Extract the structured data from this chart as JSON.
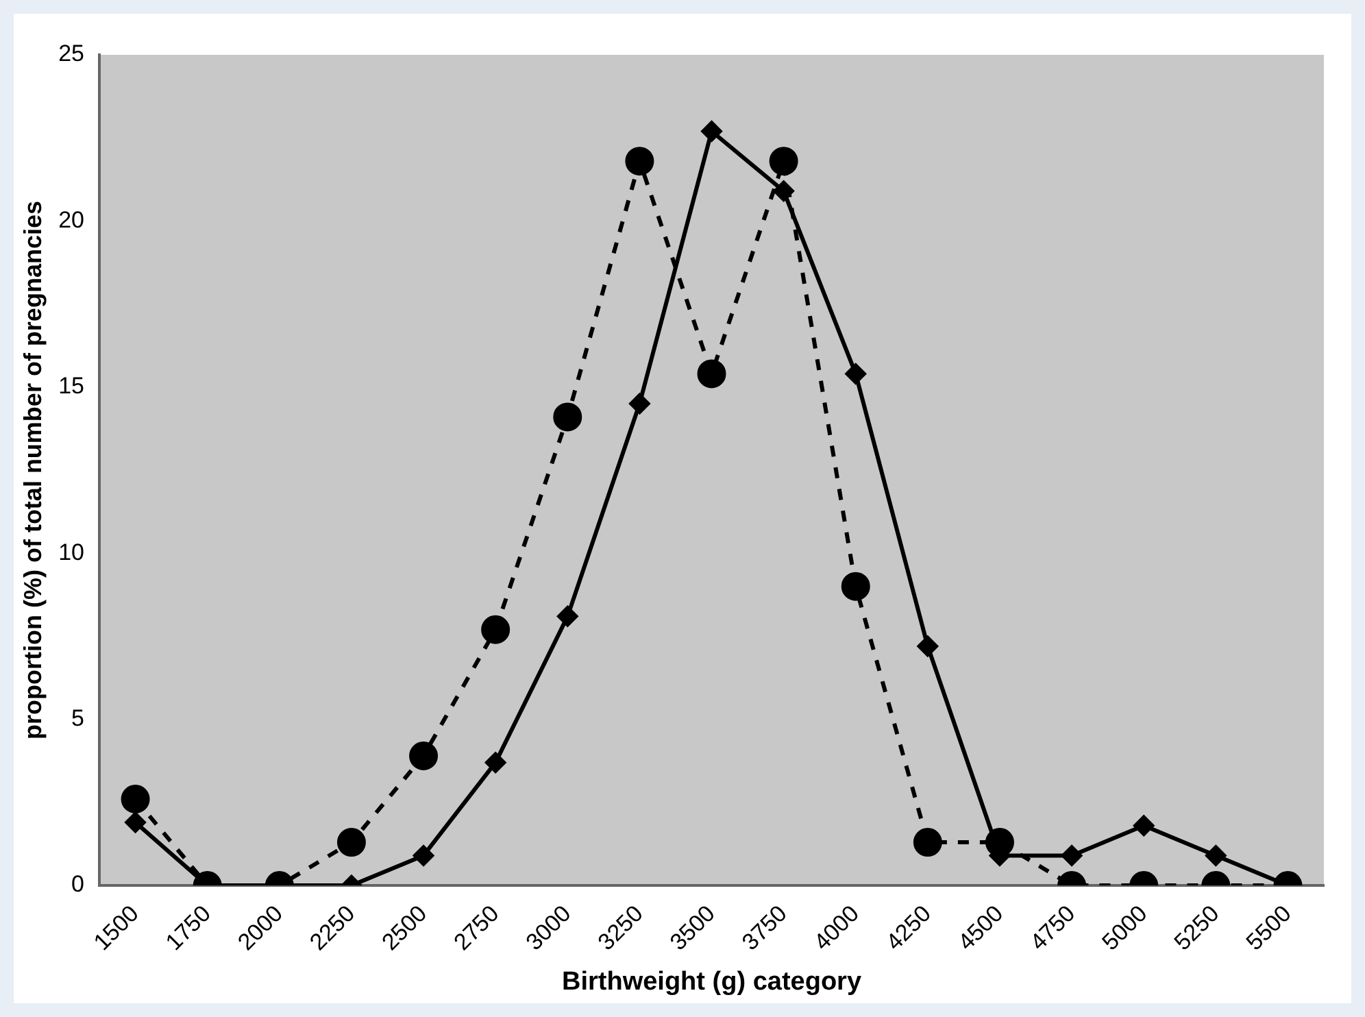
{
  "chart_data": {
    "type": "line",
    "xlabel": "Birthweight (g) category",
    "ylabel": "proportion (%) of total number of pregnancies",
    "categories": [
      "1500",
      "1750",
      "2000",
      "2250",
      "2500",
      "2750",
      "3000",
      "3250",
      "3500",
      "3750",
      "4000",
      "4250",
      "4500",
      "4750",
      "5000",
      "5250",
      "5500"
    ],
    "series": [
      {
        "color": "#000000",
        "marker": "diamond",
        "line_style": "solid",
        "values": [
          1.9,
          0,
          0,
          0,
          0.9,
          3.7,
          8.1,
          14.5,
          22.7,
          20.9,
          15.4,
          7.2,
          0.9,
          0.9,
          1.8,
          0.9,
          0
        ]
      },
      {
        "color": "#000000",
        "marker": "circle",
        "line_style": "dashed",
        "values": [
          2.6,
          0,
          0,
          1.3,
          3.9,
          7.7,
          14.1,
          21.8,
          15.4,
          21.8,
          9.0,
          1.3,
          1.3,
          0,
          0,
          0,
          0
        ]
      }
    ],
    "ylim": [
      0,
      25
    ],
    "yticks": [
      0,
      5,
      10,
      15,
      20,
      25
    ],
    "grid": false,
    "legend": false
  }
}
